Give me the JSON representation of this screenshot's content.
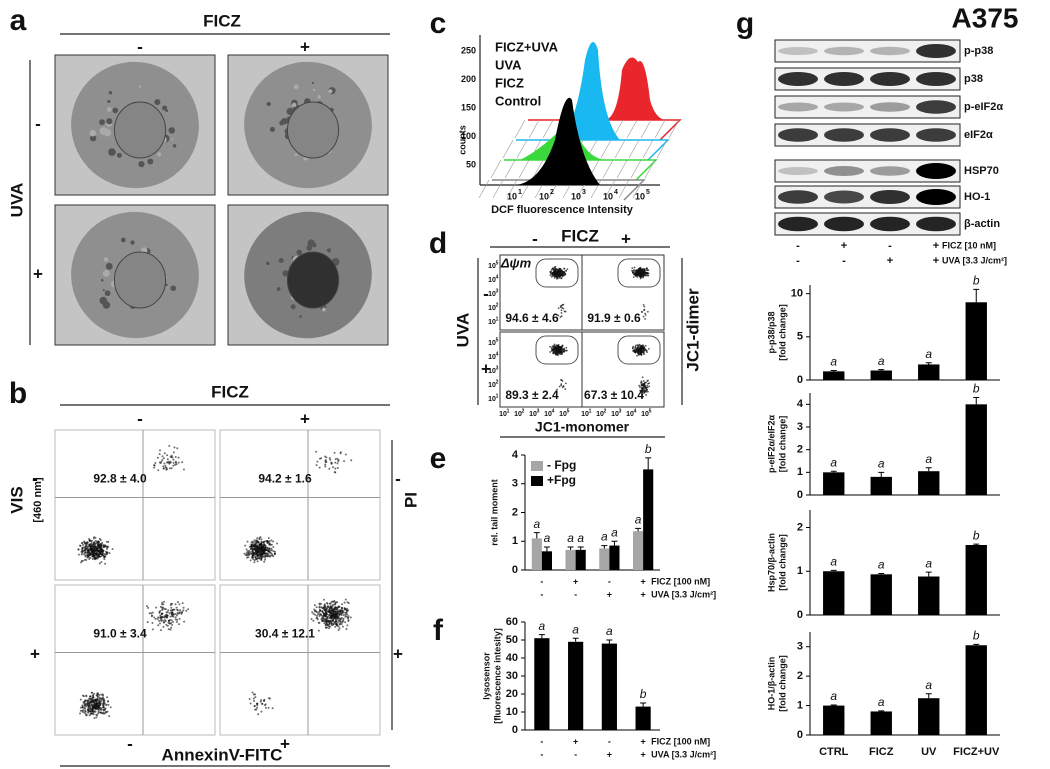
{
  "panels": {
    "a": {
      "label": "a",
      "header": "FICZ",
      "cols": [
        "-",
        "+"
      ],
      "row_header": "UVA",
      "rows": [
        "-",
        "+"
      ]
    },
    "b": {
      "label": "b",
      "header": "FICZ",
      "cols": [
        "-",
        "+"
      ],
      "rows": [
        "-",
        "+"
      ],
      "y_label": "VIS",
      "y_sublabel": "[460 nm]",
      "right_label": "PI",
      "x_label": "AnnexinV-FITC",
      "quadrant_values": [
        "92.8 ± 4.0",
        "94.2 ± 1.6",
        "91.0 ± 3.4",
        "30.4 ± 12.1"
      ]
    },
    "c": {
      "label": "c",
      "legend": [
        {
          "name": "FICZ+UVA",
          "color": "#e8262c"
        },
        {
          "name": "UVA",
          "color": "#19b8f0"
        },
        {
          "name": "FICZ",
          "color": "#3ad83a"
        },
        {
          "name": "Control",
          "color": "#000000"
        }
      ],
      "y_label": "counts",
      "yticks": [
        "50",
        "100",
        "150",
        "200",
        "250"
      ],
      "x_label": "DCF fluorescence Intensity",
      "tick_base": "10",
      "xtick_exps": [
        "1",
        "2",
        "3",
        "4",
        "5"
      ]
    },
    "d": {
      "label": "d",
      "header": "FICZ",
      "cols": [
        "-",
        "+"
      ],
      "row_header": "UVA",
      "rows": [
        "-",
        "+"
      ],
      "gate": "Δψm",
      "right_label": "JC1-dimer",
      "x_label": "JC1-monomer",
      "values": [
        "94.6 ± 4.6",
        "91.9 ± 0.6",
        "89.3 ± 2.4",
        "67.3 ± 10.4"
      ],
      "tick_base": "10",
      "tick_exps": [
        "1",
        "2",
        "3",
        "4",
        "5"
      ]
    },
    "g": {
      "label": "g",
      "title": "A375",
      "blots": [
        "p-p38",
        "p38",
        "p-eIF2α",
        "eIF2α",
        "HSP70",
        "HO-1",
        "β-actin"
      ],
      "treatments": [
        {
          "name": "FICZ [10 nM]",
          "signs": [
            "-",
            "+",
            "-",
            "+"
          ]
        },
        {
          "name": "UVA [3.3 J/cm²]",
          "signs": [
            "-",
            "-",
            "+",
            "+"
          ]
        }
      ]
    },
    "e_label": "e",
    "f_label": "f"
  },
  "chart_data": [
    {
      "type": "bar",
      "y_label": "rel. tail moment",
      "categories": [
        null,
        null,
        null,
        null
      ],
      "ylim": [
        0,
        4
      ],
      "yticks": [
        0,
        1,
        2,
        3,
        4
      ],
      "series": [
        {
          "name": "- Fpg",
          "color": "#a6a6a6",
          "values": [
            1.1,
            0.7,
            0.75,
            1.35
          ],
          "errors": [
            0.2,
            0.1,
            0.1,
            0.1
          ],
          "letters": [
            "a",
            "a",
            "a",
            "a"
          ]
        },
        {
          "name": "+Fpg",
          "color": "#000000",
          "values": [
            0.65,
            0.7,
            0.85,
            3.5
          ],
          "errors": [
            0.15,
            0.1,
            0.15,
            0.4
          ],
          "letters": [
            "a",
            "a",
            "a",
            "b"
          ]
        }
      ],
      "treatments": [
        {
          "name": "FICZ [100 nM]",
          "signs": [
            "-",
            "+",
            "-",
            "+"
          ]
        },
        {
          "name": "UVA [3.3 J/cm²]",
          "signs": [
            "-",
            "-",
            "+",
            "+"
          ]
        }
      ]
    },
    {
      "type": "bar",
      "y_label": "lysosensor",
      "y_sublabel": "[fluorescence intesity]",
      "categories": [
        null,
        null,
        null,
        null
      ],
      "ylim": [
        0,
        60
      ],
      "yticks": [
        0,
        10,
        20,
        30,
        40,
        50,
        60
      ],
      "color": "#000000",
      "values": [
        51,
        49,
        48,
        13
      ],
      "errors": [
        2,
        2,
        2,
        2
      ],
      "letters": [
        "a",
        "a",
        "a",
        "b"
      ],
      "treatments": [
        {
          "name": "FICZ [100 nM]",
          "signs": [
            "-",
            "+",
            "-",
            "+"
          ]
        },
        {
          "name": "UVA [3.3 J/cm²]",
          "signs": [
            "-",
            "-",
            "+",
            "+"
          ]
        }
      ]
    },
    {
      "type": "bar",
      "y_label": "p-p38/p38",
      "y_sublabel": "[fold change]",
      "categories": [
        null,
        null,
        null,
        null
      ],
      "ylim": [
        0,
        11
      ],
      "yticks": [
        0,
        5,
        10
      ],
      "color": "#000000",
      "values": [
        1,
        1.1,
        1.8,
        9
      ],
      "errors": [
        0.1,
        0.1,
        0.2,
        1.5
      ],
      "letters": [
        "a",
        "a",
        "a",
        "b"
      ]
    },
    {
      "type": "bar",
      "y_label": "p-eIF2α/eIF2α",
      "y_sublabel": "[fold change]",
      "categories": [
        null,
        null,
        null,
        null
      ],
      "ylim": [
        0,
        4.5
      ],
      "yticks": [
        0,
        1,
        2,
        3,
        4
      ],
      "color": "#000000",
      "values": [
        1,
        0.8,
        1.05,
        4.0
      ],
      "errors": [
        0.05,
        0.2,
        0.15,
        0.3
      ],
      "letters": [
        "a",
        "a",
        "a",
        "b"
      ]
    },
    {
      "type": "bar",
      "y_label": "Hsp70/β-actin",
      "y_sublabel": "[fold change]",
      "categories": [
        null,
        null,
        null,
        null
      ],
      "ylim": [
        0,
        2.4
      ],
      "yticks": [
        0,
        1,
        2
      ],
      "color": "#000000",
      "values": [
        1,
        0.93,
        0.88,
        1.6
      ],
      "errors": [
        0.02,
        0.02,
        0.1,
        0.02
      ],
      "letters": [
        "a",
        "a",
        "a",
        "b"
      ]
    },
    {
      "type": "bar",
      "y_label": "HO-1/β-actin",
      "y_sublabel": "[fold change]",
      "categories": [
        "CTRL",
        "FICZ",
        "UV",
        "FICZ+UV"
      ],
      "ylim": [
        0,
        3.5
      ],
      "yticks": [
        0,
        1,
        2,
        3
      ],
      "color": "#000000",
      "values": [
        1,
        0.8,
        1.25,
        3.05
      ],
      "errors": [
        0.02,
        0.02,
        0.15,
        0.03
      ],
      "letters": [
        "a",
        "a",
        "a",
        "b"
      ]
    }
  ]
}
